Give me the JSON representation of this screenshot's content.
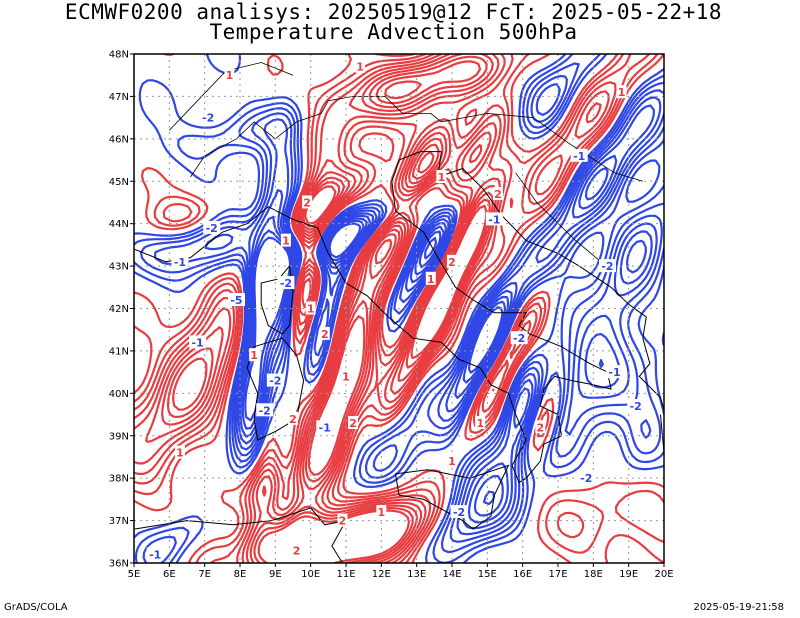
{
  "title": {
    "line1": "ECMWF0200 analisys: 20250519@12 FcT: 2025-05-22+18",
    "line2": "Temperature Advection 500hPa"
  },
  "axes": {
    "lat_labels": [
      "36N",
      "37N",
      "38N",
      "39N",
      "40N",
      "41N",
      "42N",
      "43N",
      "44N",
      "45N",
      "46N",
      "47N",
      "48N"
    ],
    "lon_labels": [
      "5E",
      "6E",
      "7E",
      "8E",
      "9E",
      "10E",
      "11E",
      "12E",
      "13E",
      "14E",
      "15E",
      "16E",
      "17E",
      "18E",
      "19E",
      "20E"
    ],
    "lat_range": [
      36,
      48
    ],
    "lon_range": [
      5,
      20
    ]
  },
  "contour_labels": [
    {
      "text": "-2",
      "lon": 9.3,
      "lat": 42.6,
      "sign": "neg"
    },
    {
      "text": "-1",
      "lon": 6.8,
      "lat": 41.2,
      "sign": "neg"
    },
    {
      "text": "-5",
      "lon": 7.9,
      "lat": 42.2,
      "sign": "neg"
    },
    {
      "text": "-2",
      "lon": 9.0,
      "lat": 40.3,
      "sign": "neg"
    },
    {
      "text": "-2",
      "lon": 8.7,
      "lat": 39.6,
      "sign": "neg"
    },
    {
      "text": "-1",
      "lon": 10.4,
      "lat": 39.2,
      "sign": "neg"
    },
    {
      "text": "-1",
      "lon": 6.3,
      "lat": 43.1,
      "sign": "neg"
    },
    {
      "text": "-2",
      "lon": 7.2,
      "lat": 43.9,
      "sign": "neg"
    },
    {
      "text": "-2",
      "lon": 15.9,
      "lat": 41.3,
      "sign": "neg"
    },
    {
      "text": "-1",
      "lon": 18.6,
      "lat": 40.5,
      "sign": "neg"
    },
    {
      "text": "-2",
      "lon": 17.8,
      "lat": 38.0,
      "sign": "neg"
    },
    {
      "text": "-2",
      "lon": 18.4,
      "lat": 43.0,
      "sign": "neg"
    },
    {
      "text": "-1",
      "lon": 17.6,
      "lat": 45.6,
      "sign": "neg"
    },
    {
      "text": "-2",
      "lon": 7.1,
      "lat": 46.5,
      "sign": "neg"
    },
    {
      "text": "-2",
      "lon": 14.2,
      "lat": 37.2,
      "sign": "neg"
    },
    {
      "text": "-1",
      "lon": 5.6,
      "lat": 36.2,
      "sign": "neg"
    },
    {
      "text": "-2",
      "lon": 19.2,
      "lat": 39.7,
      "sign": "neg"
    },
    {
      "text": "-1",
      "lon": 15.2,
      "lat": 44.1,
      "sign": "neg"
    },
    {
      "text": "1",
      "lon": 10.0,
      "lat": 42.0,
      "sign": "pos"
    },
    {
      "text": "2",
      "lon": 10.4,
      "lat": 41.4,
      "sign": "pos"
    },
    {
      "text": "1",
      "lon": 8.4,
      "lat": 40.9,
      "sign": "pos"
    },
    {
      "text": "2",
      "lon": 9.5,
      "lat": 39.4,
      "sign": "pos"
    },
    {
      "text": "1",
      "lon": 11.0,
      "lat": 40.4,
      "sign": "pos"
    },
    {
      "text": "2",
      "lon": 11.2,
      "lat": 39.3,
      "sign": "pos"
    },
    {
      "text": "1",
      "lon": 9.3,
      "lat": 43.6,
      "sign": "pos"
    },
    {
      "text": "2",
      "lon": 9.9,
      "lat": 44.5,
      "sign": "pos"
    },
    {
      "text": "1",
      "lon": 13.4,
      "lat": 42.7,
      "sign": "pos"
    },
    {
      "text": "2",
      "lon": 14.0,
      "lat": 43.1,
      "sign": "pos"
    },
    {
      "text": "1",
      "lon": 13.7,
      "lat": 45.1,
      "sign": "pos"
    },
    {
      "text": "2",
      "lon": 15.3,
      "lat": 44.7,
      "sign": "pos"
    },
    {
      "text": "1",
      "lon": 11.4,
      "lat": 47.7,
      "sign": "pos"
    },
    {
      "text": "1",
      "lon": 7.7,
      "lat": 47.5,
      "sign": "pos"
    },
    {
      "text": "2",
      "lon": 16.5,
      "lat": 39.2,
      "sign": "pos"
    },
    {
      "text": "1",
      "lon": 14.0,
      "lat": 38.4,
      "sign": "pos"
    },
    {
      "text": "1",
      "lon": 12.0,
      "lat": 37.2,
      "sign": "pos"
    },
    {
      "text": "2",
      "lon": 9.6,
      "lat": 36.3,
      "sign": "pos"
    },
    {
      "text": "1",
      "lon": 6.3,
      "lat": 38.6,
      "sign": "pos"
    },
    {
      "text": "2",
      "lon": 10.9,
      "lat": 37.0,
      "sign": "pos"
    },
    {
      "text": "1",
      "lon": 14.8,
      "lat": 39.3,
      "sign": "pos"
    },
    {
      "text": "1",
      "lon": 18.8,
      "lat": 47.1,
      "sign": "pos"
    }
  ],
  "colors": {
    "negative_contour": "#2f47e6",
    "positive_contour": "#e83c40",
    "coastline": "#000000",
    "grid": "#9a9a9a",
    "frame": "#000000"
  },
  "footer": {
    "left": "GrADS/COLA",
    "right": "2025-05-19-21:58"
  }
}
